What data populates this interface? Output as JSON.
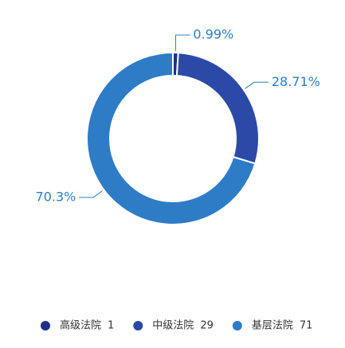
{
  "chart_data": {
    "type": "donut",
    "categories": [
      "高级法院",
      "中级法院",
      "基层法院"
    ],
    "counts": [
      1,
      29,
      71
    ],
    "values": [
      0.99,
      28.71,
      70.3
    ],
    "value_labels": [
      "0.99%",
      "28.71%",
      "70.3%"
    ],
    "colors": [
      "#1f2f8a",
      "#2b4aa8",
      "#2e7cc6"
    ]
  }
}
